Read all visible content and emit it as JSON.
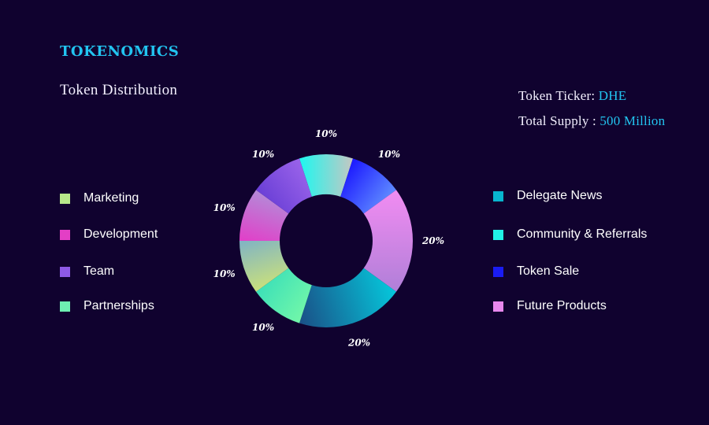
{
  "header": {
    "title": "TOKENOMICS",
    "subtitle": "Token Distribution"
  },
  "info": {
    "ticker_label": "Token Ticker:",
    "ticker_value": "DHE",
    "supply_label": "Total Supply :",
    "supply_value": "500 Million"
  },
  "colors": {
    "background": "#10022f",
    "accent": "#22c4f0"
  },
  "legend_left": [
    {
      "label": "Marketing",
      "color": "#b7e88a"
    },
    {
      "label": "Development",
      "color": "#e33fc5"
    },
    {
      "label": "Team",
      "color": "#8e5ae6"
    },
    {
      "label": "Partnerships",
      "color": "#6ef0b2"
    }
  ],
  "legend_right": [
    {
      "label": "Delegate News",
      "color": "#08b6cf"
    },
    {
      "label": "Community & Referrals",
      "color": "#21f2e6"
    },
    {
      "label": "Token Sale",
      "color": "#1a1cf2"
    },
    {
      "label": "Future Products",
      "color": "#e888ee"
    }
  ],
  "chart_data": {
    "type": "pie",
    "subtype": "donut",
    "title": "Token Distribution",
    "slices": [
      {
        "label": "Community & Referrals",
        "value": 10,
        "display": "10%",
        "colors": [
          "#1df7ef",
          "#c5c7c3"
        ]
      },
      {
        "label": "Token Sale",
        "value": 10,
        "display": "10%",
        "colors": [
          "#1b18ff",
          "#5f8bff"
        ]
      },
      {
        "label": "Future Products",
        "value": 20,
        "display": "20%",
        "colors": [
          "#f28cf2",
          "#b07fd8"
        ]
      },
      {
        "label": "Delegate News",
        "value": 20,
        "display": "20%",
        "colors": [
          "#05c8dc",
          "#1a4f86"
        ]
      },
      {
        "label": "Partnerships",
        "value": 10,
        "display": "10%",
        "colors": [
          "#72f7a9",
          "#3de0b8"
        ]
      },
      {
        "label": "Marketing",
        "value": 10,
        "display": "10%",
        "colors": [
          "#c9e07c",
          "#7fb3c5"
        ]
      },
      {
        "label": "Development",
        "value": 10,
        "display": "10%",
        "colors": [
          "#e23ec8",
          "#b48ad8"
        ]
      },
      {
        "label": "Team",
        "value": 10,
        "display": "10%",
        "colors": [
          "#6a3fd6",
          "#9a63ea"
        ]
      }
    ]
  }
}
